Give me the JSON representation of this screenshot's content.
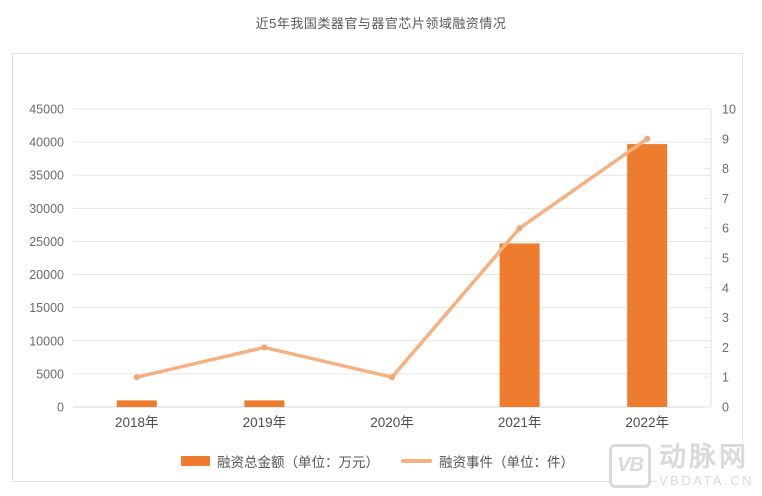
{
  "title": "近5年我国类器官与器官芯片领域融资情况",
  "colors": {
    "bar": "#ee7c2e",
    "line": "#f6b183",
    "marker": "#f3a473",
    "grid": "#e6e6e6",
    "axis_bottom": "#d4d4d4",
    "axis_right": "#e0e0e0",
    "tick_text": "#6b6b6b",
    "category_text": "#4d4d4d",
    "title_text": "#595959",
    "watermark": "#dadada"
  },
  "chart_data": {
    "type": "bar",
    "categories": [
      "2018年",
      "2019年",
      "2020年",
      "2021年",
      "2022年"
    ],
    "series": [
      {
        "name": "融资总金额（单位：万元）",
        "type": "bar",
        "axis": "left",
        "values": [
          1000,
          1000,
          0,
          24700,
          39700
        ]
      },
      {
        "name": "融资事件（单位：件）",
        "type": "line",
        "axis": "right",
        "values": [
          1,
          2,
          1,
          6,
          9
        ]
      }
    ],
    "left_axis": {
      "min": 0,
      "max": 45000,
      "step": 5000,
      "ticks": [
        "0",
        "5000",
        "10000",
        "15000",
        "20000",
        "25000",
        "30000",
        "35000",
        "40000",
        "45000"
      ]
    },
    "right_axis": {
      "min": 0,
      "max": 10,
      "step": 1,
      "ticks": [
        "0",
        "1",
        "2",
        "3",
        "4",
        "5",
        "6",
        "7",
        "8",
        "9",
        "10"
      ]
    },
    "grid": true,
    "legend_position": "bottom",
    "title": "近5年我国类器官与器官芯片领域融资情况"
  },
  "watermark": {
    "logo_text": "VB",
    "brand": "动脉网",
    "domain": "VBDATA.CN"
  }
}
